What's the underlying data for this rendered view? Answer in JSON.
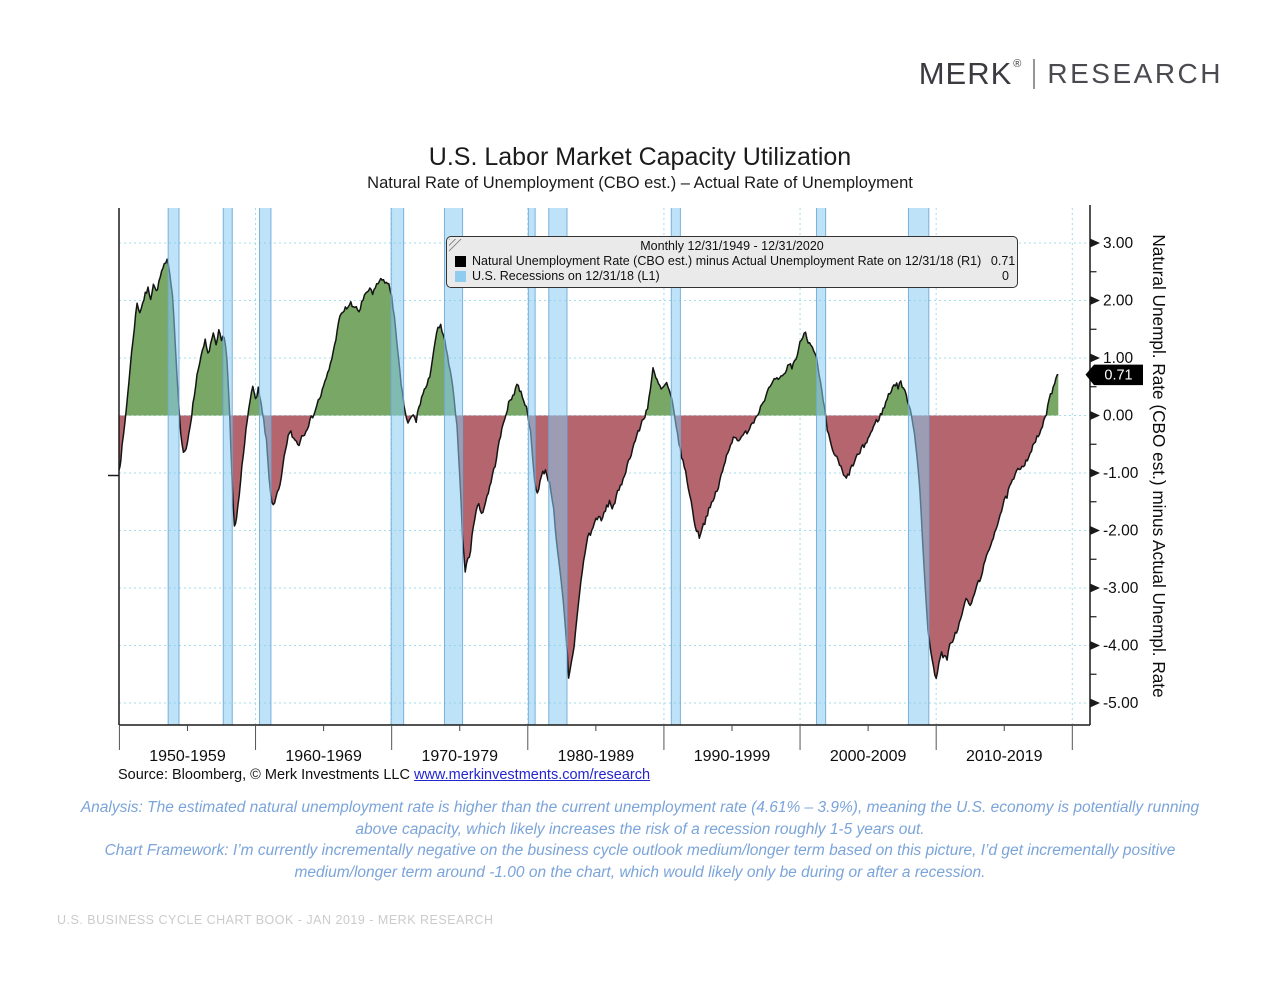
{
  "header": {
    "logo_primary": "MERK",
    "logo_reg": "®",
    "logo_secondary": "RESEARCH"
  },
  "title": "U.S. Labor Market Capacity Utilization",
  "subtitle": "Natural Rate of Unemployment (CBO est.) – Actual Rate of Unemployment",
  "legend": {
    "title": "Monthly 12/31/1949 - 12/31/2020",
    "rows": [
      {
        "swatch": "#000000",
        "label": "Natural Unemployment Rate (CBO est.) minus Actual Unemployment Rate on 12/31/18 (R1)",
        "value": "0.71"
      },
      {
        "swatch": "#8fccf0",
        "label": "U.S. Recessions on 12/31/18 (L1)",
        "value": "0"
      }
    ]
  },
  "right_axis": {
    "title": "Natural Unempl. Rate (CBO est.) minus Actual Unempl. Rate",
    "tick_labels": [
      "3.00",
      "2.00",
      "1.00",
      "0.00",
      "-1.00",
      "-2.00",
      "-3.00",
      "-4.00",
      "-5.00"
    ],
    "last_value_label": "0.71"
  },
  "x_axis": {
    "decade_labels": [
      "1950-1959",
      "1960-1969",
      "1970-1979",
      "1980-1989",
      "1990-1999",
      "2000-2009",
      "2010-2019"
    ]
  },
  "source": {
    "prefix": "Source: Bloomberg, © Merk Investments LLC ",
    "link": "www.merkinvestments.com/research"
  },
  "analysis": {
    "line1": "Analysis: The estimated natural unemployment rate is higher than the current unemployment rate (4.61% – 3.9%), meaning the U.S. economy is potentially running above capacity, which likely increases the risk of a recession roughly 1-5 years out.",
    "line2": "Chart Framework: I’m currently incrementally negative on the business cycle outlook medium/longer term based on this picture, I’d get incrementally positive medium/longer term around -1.00 on the chart, which would likely only be during or after a recession."
  },
  "footer": "U.S. BUSINESS CYCLE CHART BOOK - JAN 2019 - MERK RESEARCH",
  "chart_data": {
    "type": "area",
    "title": "U.S. Labor Market Capacity Utilization",
    "series_name": "Natural Unemployment Rate (CBO est.) minus Actual Unemployment Rate on 12/31/18",
    "x_range": [
      1949.97,
      2021.3
    ],
    "ylim": [
      -5.38,
      3.6
    ],
    "y_major_ticks": [
      3,
      2,
      1,
      0,
      -1,
      -2,
      -3,
      -4,
      -5
    ],
    "y_minor_ticks": [
      2.5,
      1.5,
      0.5,
      -0.5,
      -1.5,
      -2.5,
      -3.5,
      -4.5
    ],
    "x_gridline_years": [
      1960,
      1970,
      1980,
      1990,
      2000,
      2010,
      2020
    ],
    "x_separator_years": [
      1950,
      1960,
      1970,
      1980,
      1990,
      2000,
      2010,
      2020
    ],
    "x_minor_tick_years": [
      1955,
      1965,
      1975,
      1985,
      1995,
      2005,
      2015
    ],
    "grid": true,
    "legend_position": "top",
    "last_value": 0.71,
    "keypoints": [
      [
        1949.97,
        -0.95
      ],
      [
        1950.1,
        -0.75
      ],
      [
        1950.3,
        -0.35
      ],
      [
        1950.5,
        0.1
      ],
      [
        1950.7,
        0.6
      ],
      [
        1950.9,
        1.1
      ],
      [
        1951.1,
        1.55
      ],
      [
        1951.3,
        1.95
      ],
      [
        1951.5,
        1.8
      ],
      [
        1951.7,
        1.95
      ],
      [
        1951.9,
        2.1
      ],
      [
        1952.1,
        2.2
      ],
      [
        1952.3,
        2.05
      ],
      [
        1952.5,
        2.3
      ],
      [
        1952.7,
        2.15
      ],
      [
        1952.9,
        2.3
      ],
      [
        1953.1,
        2.5
      ],
      [
        1953.3,
        2.6
      ],
      [
        1953.5,
        2.68
      ],
      [
        1953.7,
        2.5
      ],
      [
        1953.9,
        2.1
      ],
      [
        1954.1,
        1.3
      ],
      [
        1954.3,
        0.4
      ],
      [
        1954.5,
        -0.3
      ],
      [
        1954.7,
        -0.68
      ],
      [
        1954.9,
        -0.6
      ],
      [
        1955.1,
        -0.3
      ],
      [
        1955.3,
        0.0
      ],
      [
        1955.5,
        0.35
      ],
      [
        1955.7,
        0.7
      ],
      [
        1955.9,
        0.95
      ],
      [
        1956.1,
        1.1
      ],
      [
        1956.3,
        1.3
      ],
      [
        1956.5,
        1.05
      ],
      [
        1956.7,
        1.25
      ],
      [
        1956.9,
        1.4
      ],
      [
        1957.1,
        1.2
      ],
      [
        1957.3,
        1.45
      ],
      [
        1957.5,
        1.3
      ],
      [
        1957.7,
        1.4
      ],
      [
        1957.9,
        1.0
      ],
      [
        1958.1,
        0.0
      ],
      [
        1958.3,
        -1.3
      ],
      [
        1958.45,
        -1.95
      ],
      [
        1958.6,
        -1.8
      ],
      [
        1958.8,
        -1.4
      ],
      [
        1959.0,
        -0.85
      ],
      [
        1959.2,
        -0.45
      ],
      [
        1959.4,
        -0.1
      ],
      [
        1959.6,
        0.3
      ],
      [
        1959.8,
        0.5
      ],
      [
        1960.0,
        0.25
      ],
      [
        1960.2,
        0.45
      ],
      [
        1960.4,
        0.2
      ],
      [
        1960.6,
        -0.1
      ],
      [
        1960.8,
        -0.45
      ],
      [
        1961.0,
        -1.1
      ],
      [
        1961.2,
        -1.5
      ],
      [
        1961.4,
        -1.55
      ],
      [
        1961.6,
        -1.35
      ],
      [
        1961.8,
        -1.25
      ],
      [
        1962.0,
        -0.9
      ],
      [
        1962.2,
        -0.6
      ],
      [
        1962.4,
        -0.35
      ],
      [
        1962.6,
        -0.3
      ],
      [
        1962.8,
        -0.4
      ],
      [
        1963.0,
        -0.45
      ],
      [
        1963.2,
        -0.5
      ],
      [
        1963.4,
        -0.35
      ],
      [
        1963.6,
        -0.3
      ],
      [
        1963.8,
        -0.2
      ],
      [
        1964.0,
        -0.1
      ],
      [
        1964.2,
        0.0
      ],
      [
        1964.4,
        0.1
      ],
      [
        1964.6,
        0.25
      ],
      [
        1964.8,
        0.35
      ],
      [
        1965.0,
        0.5
      ],
      [
        1965.2,
        0.65
      ],
      [
        1965.4,
        0.8
      ],
      [
        1965.6,
        1.0
      ],
      [
        1965.8,
        1.2
      ],
      [
        1966.0,
        1.5
      ],
      [
        1966.2,
        1.7
      ],
      [
        1966.4,
        1.8
      ],
      [
        1966.6,
        1.85
      ],
      [
        1966.8,
        1.9
      ],
      [
        1967.0,
        1.95
      ],
      [
        1967.2,
        1.85
      ],
      [
        1967.4,
        1.9
      ],
      [
        1967.6,
        1.8
      ],
      [
        1967.8,
        1.95
      ],
      [
        1968.0,
        2.05
      ],
      [
        1968.2,
        2.15
      ],
      [
        1968.4,
        2.2
      ],
      [
        1968.6,
        2.1
      ],
      [
        1968.8,
        2.25
      ],
      [
        1969.0,
        2.3
      ],
      [
        1969.2,
        2.35
      ],
      [
        1969.4,
        2.38
      ],
      [
        1969.6,
        2.3
      ],
      [
        1969.8,
        2.25
      ],
      [
        1970.0,
        2.1
      ],
      [
        1970.2,
        1.7
      ],
      [
        1970.4,
        1.2
      ],
      [
        1970.6,
        0.75
      ],
      [
        1970.8,
        0.35
      ],
      [
        1971.0,
        0.05
      ],
      [
        1971.2,
        -0.15
      ],
      [
        1971.4,
        -0.05
      ],
      [
        1971.6,
        0.0
      ],
      [
        1971.8,
        -0.1
      ],
      [
        1972.0,
        0.15
      ],
      [
        1972.2,
        0.3
      ],
      [
        1972.4,
        0.45
      ],
      [
        1972.6,
        0.5
      ],
      [
        1972.8,
        0.7
      ],
      [
        1973.0,
        1.0
      ],
      [
        1973.2,
        1.3
      ],
      [
        1973.4,
        1.5
      ],
      [
        1973.6,
        1.55
      ],
      [
        1973.8,
        1.4
      ],
      [
        1974.0,
        1.15
      ],
      [
        1974.2,
        0.9
      ],
      [
        1974.4,
        0.6
      ],
      [
        1974.6,
        0.3
      ],
      [
        1974.8,
        -0.2
      ],
      [
        1975.0,
        -1.0
      ],
      [
        1975.2,
        -2.1
      ],
      [
        1975.4,
        -2.7
      ],
      [
        1975.6,
        -2.5
      ],
      [
        1975.8,
        -2.35
      ],
      [
        1976.0,
        -1.9
      ],
      [
        1976.2,
        -1.65
      ],
      [
        1976.4,
        -1.55
      ],
      [
        1976.6,
        -1.7
      ],
      [
        1976.8,
        -1.6
      ],
      [
        1977.0,
        -1.4
      ],
      [
        1977.2,
        -1.25
      ],
      [
        1977.4,
        -1.05
      ],
      [
        1977.6,
        -0.85
      ],
      [
        1977.8,
        -0.6
      ],
      [
        1978.0,
        -0.35
      ],
      [
        1978.2,
        -0.15
      ],
      [
        1978.4,
        0.05
      ],
      [
        1978.6,
        0.2
      ],
      [
        1978.8,
        0.3
      ],
      [
        1979.0,
        0.4
      ],
      [
        1979.2,
        0.55
      ],
      [
        1979.4,
        0.45
      ],
      [
        1979.6,
        0.35
      ],
      [
        1979.8,
        0.2
      ],
      [
        1980.0,
        0.05
      ],
      [
        1980.2,
        -0.3
      ],
      [
        1980.5,
        -1.15
      ],
      [
        1980.7,
        -1.35
      ],
      [
        1980.9,
        -1.15
      ],
      [
        1981.1,
        -1.0
      ],
      [
        1981.3,
        -0.95
      ],
      [
        1981.5,
        -1.1
      ],
      [
        1981.7,
        -1.3
      ],
      [
        1981.9,
        -1.6
      ],
      [
        1982.1,
        -2.2
      ],
      [
        1982.3,
        -2.6
      ],
      [
        1982.5,
        -3.0
      ],
      [
        1982.7,
        -3.5
      ],
      [
        1982.9,
        -4.15
      ],
      [
        1983.0,
        -4.55
      ],
      [
        1983.2,
        -4.3
      ],
      [
        1983.4,
        -4.0
      ],
      [
        1983.6,
        -3.55
      ],
      [
        1983.8,
        -3.1
      ],
      [
        1984.0,
        -2.7
      ],
      [
        1984.2,
        -2.4
      ],
      [
        1984.4,
        -2.1
      ],
      [
        1984.6,
        -2.05
      ],
      [
        1984.8,
        -1.95
      ],
      [
        1985.0,
        -1.8
      ],
      [
        1985.2,
        -1.75
      ],
      [
        1985.4,
        -1.85
      ],
      [
        1985.6,
        -1.7
      ],
      [
        1985.8,
        -1.6
      ],
      [
        1986.0,
        -1.5
      ],
      [
        1986.2,
        -1.6
      ],
      [
        1986.4,
        -1.5
      ],
      [
        1986.6,
        -1.35
      ],
      [
        1986.8,
        -1.25
      ],
      [
        1987.0,
        -1.1
      ],
      [
        1987.2,
        -0.95
      ],
      [
        1987.4,
        -0.8
      ],
      [
        1987.6,
        -0.65
      ],
      [
        1987.8,
        -0.5
      ],
      [
        1988.0,
        -0.35
      ],
      [
        1988.2,
        -0.25
      ],
      [
        1988.4,
        -0.1
      ],
      [
        1988.6,
        0.0
      ],
      [
        1988.8,
        0.15
      ],
      [
        1989.0,
        0.45
      ],
      [
        1989.2,
        0.8
      ],
      [
        1989.4,
        0.65
      ],
      [
        1989.6,
        0.55
      ],
      [
        1989.8,
        0.45
      ],
      [
        1990.0,
        0.5
      ],
      [
        1990.2,
        0.55
      ],
      [
        1990.4,
        0.4
      ],
      [
        1990.6,
        0.25
      ],
      [
        1990.8,
        0.0
      ],
      [
        1991.0,
        -0.35
      ],
      [
        1991.2,
        -0.6
      ],
      [
        1991.4,
        -0.8
      ],
      [
        1991.6,
        -1.0
      ],
      [
        1991.8,
        -1.25
      ],
      [
        1992.0,
        -1.5
      ],
      [
        1992.2,
        -1.8
      ],
      [
        1992.4,
        -2.0
      ],
      [
        1992.6,
        -2.1
      ],
      [
        1992.8,
        -1.95
      ],
      [
        1993.0,
        -1.85
      ],
      [
        1993.2,
        -1.7
      ],
      [
        1993.4,
        -1.6
      ],
      [
        1993.6,
        -1.5
      ],
      [
        1993.8,
        -1.35
      ],
      [
        1994.0,
        -1.25
      ],
      [
        1994.2,
        -1.05
      ],
      [
        1994.4,
        -0.9
      ],
      [
        1994.6,
        -0.7
      ],
      [
        1994.8,
        -0.55
      ],
      [
        1995.0,
        -0.45
      ],
      [
        1995.2,
        -0.35
      ],
      [
        1995.4,
        -0.4
      ],
      [
        1995.6,
        -0.45
      ],
      [
        1995.8,
        -0.35
      ],
      [
        1996.0,
        -0.3
      ],
      [
        1996.2,
        -0.25
      ],
      [
        1996.4,
        -0.15
      ],
      [
        1996.6,
        -0.1
      ],
      [
        1996.8,
        0.0
      ],
      [
        1997.0,
        0.1
      ],
      [
        1997.2,
        0.2
      ],
      [
        1997.4,
        0.3
      ],
      [
        1997.6,
        0.4
      ],
      [
        1997.8,
        0.5
      ],
      [
        1998.0,
        0.55
      ],
      [
        1998.2,
        0.65
      ],
      [
        1998.4,
        0.6
      ],
      [
        1998.6,
        0.65
      ],
      [
        1998.8,
        0.7
      ],
      [
        1999.0,
        0.8
      ],
      [
        1999.2,
        0.9
      ],
      [
        1999.4,
        0.85
      ],
      [
        1999.6,
        0.95
      ],
      [
        1999.8,
        1.05
      ],
      [
        2000.0,
        1.25
      ],
      [
        2000.2,
        1.4
      ],
      [
        2000.4,
        1.45
      ],
      [
        2000.6,
        1.3
      ],
      [
        2000.8,
        1.25
      ],
      [
        2001.0,
        1.1
      ],
      [
        2001.2,
        1.0
      ],
      [
        2001.4,
        0.7
      ],
      [
        2001.6,
        0.4
      ],
      [
        2001.8,
        0.1
      ],
      [
        2002.0,
        -0.25
      ],
      [
        2002.2,
        -0.45
      ],
      [
        2002.4,
        -0.6
      ],
      [
        2002.6,
        -0.7
      ],
      [
        2002.8,
        -0.8
      ],
      [
        2003.0,
        -0.9
      ],
      [
        2003.2,
        -1.05
      ],
      [
        2003.4,
        -1.1
      ],
      [
        2003.6,
        -1.0
      ],
      [
        2003.8,
        -0.9
      ],
      [
        2004.0,
        -0.8
      ],
      [
        2004.2,
        -0.7
      ],
      [
        2004.4,
        -0.65
      ],
      [
        2004.6,
        -0.55
      ],
      [
        2004.8,
        -0.5
      ],
      [
        2005.0,
        -0.4
      ],
      [
        2005.2,
        -0.3
      ],
      [
        2005.4,
        -0.2
      ],
      [
        2005.6,
        -0.1
      ],
      [
        2005.8,
        -0.05
      ],
      [
        2006.0,
        0.05
      ],
      [
        2006.2,
        0.15
      ],
      [
        2006.4,
        0.3
      ],
      [
        2006.6,
        0.4
      ],
      [
        2006.8,
        0.5
      ],
      [
        2007.0,
        0.55
      ],
      [
        2007.2,
        0.5
      ],
      [
        2007.4,
        0.6
      ],
      [
        2007.6,
        0.45
      ],
      [
        2007.8,
        0.35
      ],
      [
        2008.0,
        0.2
      ],
      [
        2008.2,
        0.0
      ],
      [
        2008.4,
        -0.3
      ],
      [
        2008.6,
        -0.7
      ],
      [
        2008.8,
        -1.3
      ],
      [
        2009.0,
        -2.2
      ],
      [
        2009.2,
        -3.0
      ],
      [
        2009.4,
        -3.7
      ],
      [
        2009.6,
        -4.1
      ],
      [
        2009.8,
        -4.4
      ],
      [
        2010.0,
        -4.55
      ],
      [
        2010.2,
        -4.3
      ],
      [
        2010.4,
        -4.15
      ],
      [
        2010.6,
        -4.2
      ],
      [
        2010.8,
        -4.25
      ],
      [
        2011.0,
        -4.0
      ],
      [
        2011.2,
        -3.9
      ],
      [
        2011.4,
        -3.8
      ],
      [
        2011.6,
        -3.7
      ],
      [
        2011.8,
        -3.55
      ],
      [
        2012.0,
        -3.35
      ],
      [
        2012.2,
        -3.2
      ],
      [
        2012.4,
        -3.25
      ],
      [
        2012.6,
        -3.3
      ],
      [
        2012.8,
        -3.1
      ],
      [
        2013.0,
        -2.95
      ],
      [
        2013.2,
        -2.85
      ],
      [
        2013.4,
        -2.7
      ],
      [
        2013.6,
        -2.55
      ],
      [
        2013.8,
        -2.4
      ],
      [
        2014.0,
        -2.25
      ],
      [
        2014.2,
        -2.1
      ],
      [
        2014.4,
        -1.95
      ],
      [
        2014.6,
        -1.8
      ],
      [
        2014.8,
        -1.65
      ],
      [
        2015.0,
        -1.5
      ],
      [
        2015.2,
        -1.4
      ],
      [
        2015.4,
        -1.25
      ],
      [
        2015.6,
        -1.15
      ],
      [
        2015.8,
        -1.05
      ],
      [
        2016.0,
        -0.95
      ],
      [
        2016.2,
        -0.9
      ],
      [
        2016.4,
        -0.85
      ],
      [
        2016.6,
        -0.8
      ],
      [
        2016.8,
        -0.7
      ],
      [
        2017.0,
        -0.6
      ],
      [
        2017.2,
        -0.5
      ],
      [
        2017.4,
        -0.4
      ],
      [
        2017.6,
        -0.3
      ],
      [
        2017.8,
        -0.2
      ],
      [
        2018.0,
        -0.05
      ],
      [
        2018.2,
        0.15
      ],
      [
        2018.4,
        0.35
      ],
      [
        2018.6,
        0.5
      ],
      [
        2018.8,
        0.65
      ],
      [
        2018.9,
        0.75
      ],
      [
        2018.97,
        0.71
      ]
    ],
    "recessions": [
      [
        1953.58,
        1954.38
      ],
      [
        1957.63,
        1958.29
      ],
      [
        1960.29,
        1961.13
      ],
      [
        1969.96,
        1970.88
      ],
      [
        1973.88,
        1975.21
      ],
      [
        1980.04,
        1980.54
      ],
      [
        1981.54,
        1982.88
      ],
      [
        1990.54,
        1991.21
      ],
      [
        2001.21,
        2001.88
      ],
      [
        2007.96,
        2009.46
      ]
    ],
    "colors": {
      "positive_fill": "#79a765",
      "negative_fill": "#b4656d",
      "line": "#141414",
      "recession_fill": "rgba(137,202,240,0.55)",
      "recession_edge": "rgba(110,170,215,0.9)",
      "grid": "#a3dcea",
      "axis": "#1a1a1a",
      "marker_bg": "#000000",
      "marker_text": "#ffffff"
    }
  }
}
